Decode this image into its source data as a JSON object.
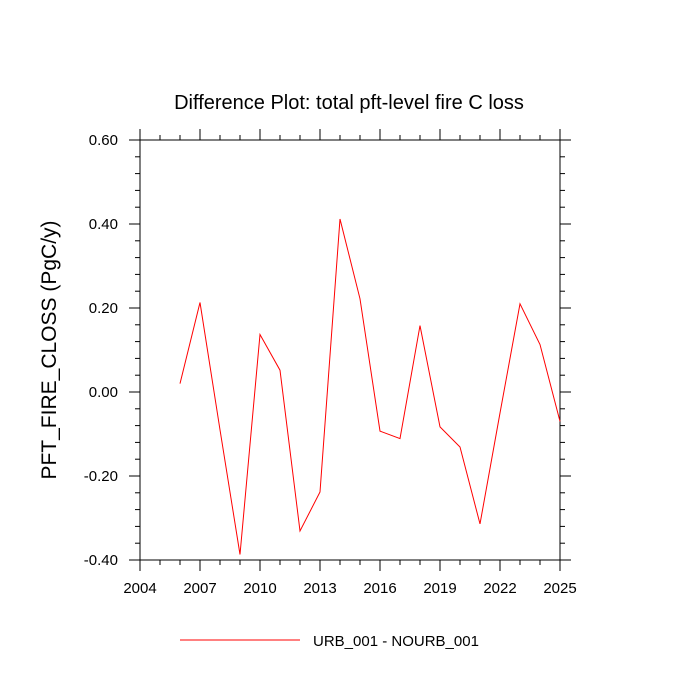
{
  "chart_data": {
    "type": "line",
    "title": "Difference Plot: total pft-level fire C loss",
    "xlabel": "",
    "ylabel": "PFT_FIRE_CLOSS  (PgC/y)",
    "xlim": [
      2004,
      2025
    ],
    "ylim": [
      -0.4,
      0.6
    ],
    "xticks": [
      2004,
      2007,
      2010,
      2013,
      2016,
      2019,
      2022,
      2025
    ],
    "xtick_labels": [
      "2004",
      "2007",
      "2010",
      "2013",
      "2016",
      "2019",
      "2022",
      "2025"
    ],
    "yticks": [
      -0.4,
      -0.2,
      0.0,
      0.2,
      0.4,
      0.6
    ],
    "ytick_labels": [
      "-0.40",
      "-0.20",
      "0.00",
      "0.20",
      "0.40",
      "0.60"
    ],
    "grid": false,
    "legend_position": "bottom",
    "series": [
      {
        "name": "URB_001 - NOURB_001",
        "color": "#ff0000",
        "x": [
          2006,
          2007,
          2008,
          2009,
          2010,
          2011,
          2012,
          2013,
          2014,
          2015,
          2016,
          2017,
          2018,
          2019,
          2020,
          2021,
          2022,
          2023,
          2024,
          2025
        ],
        "y": [
          0.02,
          0.213,
          -0.09,
          -0.387,
          0.137,
          0.052,
          -0.331,
          -0.238,
          0.412,
          0.222,
          -0.093,
          -0.111,
          0.158,
          -0.083,
          -0.131,
          -0.314,
          -0.05,
          0.21,
          0.113,
          -0.07
        ]
      }
    ]
  }
}
